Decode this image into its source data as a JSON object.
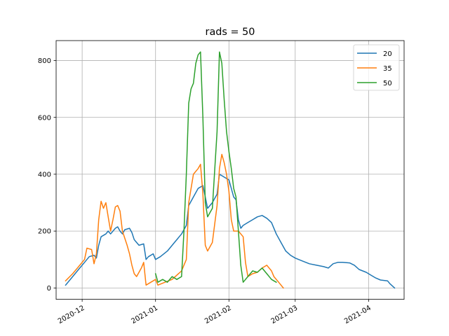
{
  "chart_data": {
    "type": "line",
    "title": "rads = 50",
    "xlabel": "",
    "ylabel": "",
    "x_axis_type": "date",
    "xlim": [
      "2020-11-20",
      "2021-04-16"
    ],
    "ylim": [
      -40,
      870
    ],
    "grid": true,
    "legend_position": "upper-right",
    "x_ticks": [
      {
        "date": "2020-12-01",
        "label": "2020-12"
      },
      {
        "date": "2021-01-01",
        "label": "2021-01"
      },
      {
        "date": "2021-02-01",
        "label": "2021-02"
      },
      {
        "date": "2021-03-01",
        "label": "2021-03"
      },
      {
        "date": "2021-04-01",
        "label": "2021-04"
      }
    ],
    "y_ticks": [
      0,
      200,
      400,
      600,
      800
    ],
    "series": [
      {
        "name": "20",
        "color": "#1f77b4",
        "points": [
          [
            "2020-11-24",
            10
          ],
          [
            "2020-11-27",
            40
          ],
          [
            "2020-11-30",
            70
          ],
          [
            "2020-12-02",
            90
          ],
          [
            "2020-12-04",
            110
          ],
          [
            "2020-12-06",
            115
          ],
          [
            "2020-12-07",
            105
          ],
          [
            "2020-12-08",
            150
          ],
          [
            "2020-12-09",
            180
          ],
          [
            "2020-12-11",
            190
          ],
          [
            "2020-12-12",
            200
          ],
          [
            "2020-12-13",
            190
          ],
          [
            "2020-12-15",
            210
          ],
          [
            "2020-12-16",
            215
          ],
          [
            "2020-12-17",
            200
          ],
          [
            "2020-12-18",
            190
          ],
          [
            "2020-12-19",
            205
          ],
          [
            "2020-12-21",
            210
          ],
          [
            "2020-12-22",
            195
          ],
          [
            "2020-12-23",
            170
          ],
          [
            "2020-12-24",
            160
          ],
          [
            "2020-12-25",
            150
          ],
          [
            "2020-12-27",
            155
          ],
          [
            "2020-12-28",
            100
          ],
          [
            "2020-12-29",
            110
          ],
          [
            "2020-12-31",
            120
          ],
          [
            "2021-01-01",
            100
          ],
          [
            "2021-01-03",
            110
          ],
          [
            "2021-01-06",
            130
          ],
          [
            "2021-01-09",
            160
          ],
          [
            "2021-01-12",
            190
          ],
          [
            "2021-01-14",
            220
          ],
          [
            "2021-01-15",
            290
          ],
          [
            "2021-01-17",
            320
          ],
          [
            "2021-01-19",
            350
          ],
          [
            "2021-01-21",
            360
          ],
          [
            "2021-01-22",
            320
          ],
          [
            "2021-01-23",
            280
          ],
          [
            "2021-01-25",
            300
          ],
          [
            "2021-01-27",
            330
          ],
          [
            "2021-01-28",
            400
          ],
          [
            "2021-01-30",
            390
          ],
          [
            "2021-02-01",
            380
          ],
          [
            "2021-02-02",
            350
          ],
          [
            "2021-02-03",
            320
          ],
          [
            "2021-02-04",
            310
          ],
          [
            "2021-02-05",
            240
          ],
          [
            "2021-02-06",
            210
          ],
          [
            "2021-02-07",
            220
          ],
          [
            "2021-02-09",
            230
          ],
          [
            "2021-02-11",
            240
          ],
          [
            "2021-02-13",
            250
          ],
          [
            "2021-02-15",
            255
          ],
          [
            "2021-02-17",
            245
          ],
          [
            "2021-02-19",
            230
          ],
          [
            "2021-02-21",
            190
          ],
          [
            "2021-02-23",
            160
          ],
          [
            "2021-02-25",
            130
          ],
          [
            "2021-02-27",
            115
          ],
          [
            "2021-03-01",
            105
          ],
          [
            "2021-03-04",
            95
          ],
          [
            "2021-03-07",
            85
          ],
          [
            "2021-03-10",
            80
          ],
          [
            "2021-03-13",
            75
          ],
          [
            "2021-03-15",
            70
          ],
          [
            "2021-03-17",
            85
          ],
          [
            "2021-03-19",
            90
          ],
          [
            "2021-03-21",
            90
          ],
          [
            "2021-03-24",
            88
          ],
          [
            "2021-03-26",
            80
          ],
          [
            "2021-03-28",
            65
          ],
          [
            "2021-03-31",
            55
          ],
          [
            "2021-04-02",
            45
          ],
          [
            "2021-04-04",
            35
          ],
          [
            "2021-04-06",
            28
          ],
          [
            "2021-04-09",
            25
          ],
          [
            "2021-04-10",
            15
          ],
          [
            "2021-04-12",
            0
          ]
        ]
      },
      {
        "name": "35",
        "color": "#ff7f0e",
        "points": [
          [
            "2020-11-24",
            25
          ],
          [
            "2020-11-27",
            50
          ],
          [
            "2020-11-30",
            80
          ],
          [
            "2020-12-02",
            100
          ],
          [
            "2020-12-03",
            140
          ],
          [
            "2020-12-05",
            135
          ],
          [
            "2020-12-06",
            85
          ],
          [
            "2020-12-07",
            120
          ],
          [
            "2020-12-08",
            240
          ],
          [
            "2020-12-09",
            305
          ],
          [
            "2020-12-10",
            280
          ],
          [
            "2020-12-11",
            300
          ],
          [
            "2020-12-12",
            250
          ],
          [
            "2020-12-13",
            200
          ],
          [
            "2020-12-14",
            240
          ],
          [
            "2020-12-15",
            285
          ],
          [
            "2020-12-16",
            290
          ],
          [
            "2020-12-17",
            270
          ],
          [
            "2020-12-18",
            200
          ],
          [
            "2020-12-20",
            150
          ],
          [
            "2020-12-21",
            120
          ],
          [
            "2020-12-22",
            80
          ],
          [
            "2020-12-23",
            50
          ],
          [
            "2020-12-24",
            40
          ],
          [
            "2020-12-26",
            70
          ],
          [
            "2020-12-27",
            90
          ],
          [
            "2020-12-28",
            10
          ],
          [
            "2020-12-30",
            20
          ],
          [
            "2021-01-01",
            30
          ],
          [
            "2021-01-02",
            10
          ],
          [
            "2021-01-05",
            20
          ],
          [
            "2021-01-08",
            30
          ],
          [
            "2021-01-12",
            60
          ],
          [
            "2021-01-14",
            100
          ],
          [
            "2021-01-15",
            300
          ],
          [
            "2021-01-17",
            400
          ],
          [
            "2021-01-19",
            420
          ],
          [
            "2021-01-20",
            435
          ],
          [
            "2021-01-21",
            330
          ],
          [
            "2021-01-22",
            150
          ],
          [
            "2021-01-23",
            130
          ],
          [
            "2021-01-25",
            160
          ],
          [
            "2021-01-27",
            290
          ],
          [
            "2021-01-28",
            420
          ],
          [
            "2021-01-29",
            470
          ],
          [
            "2021-01-30",
            440
          ],
          [
            "2021-01-31",
            400
          ],
          [
            "2021-02-01",
            340
          ],
          [
            "2021-02-02",
            240
          ],
          [
            "2021-02-03",
            200
          ],
          [
            "2021-02-05",
            200
          ],
          [
            "2021-02-07",
            180
          ],
          [
            "2021-02-08",
            90
          ],
          [
            "2021-02-09",
            40
          ],
          [
            "2021-02-11",
            50
          ],
          [
            "2021-02-13",
            55
          ],
          [
            "2021-02-15",
            70
          ],
          [
            "2021-02-17",
            80
          ],
          [
            "2021-02-19",
            60
          ],
          [
            "2021-02-20",
            40
          ],
          [
            "2021-02-22",
            20
          ],
          [
            "2021-02-24",
            0
          ]
        ]
      },
      {
        "name": "50",
        "color": "#2ca02c",
        "points": [
          [
            "2021-01-01",
            50
          ],
          [
            "2021-01-02",
            20
          ],
          [
            "2021-01-04",
            30
          ],
          [
            "2021-01-06",
            20
          ],
          [
            "2021-01-08",
            40
          ],
          [
            "2021-01-10",
            30
          ],
          [
            "2021-01-12",
            40
          ],
          [
            "2021-01-13",
            200
          ],
          [
            "2021-01-14",
            400
          ],
          [
            "2021-01-15",
            650
          ],
          [
            "2021-01-16",
            700
          ],
          [
            "2021-01-17",
            720
          ],
          [
            "2021-01-18",
            790
          ],
          [
            "2021-01-19",
            820
          ],
          [
            "2021-01-20",
            830
          ],
          [
            "2021-01-21",
            600
          ],
          [
            "2021-01-22",
            300
          ],
          [
            "2021-01-23",
            250
          ],
          [
            "2021-01-25",
            280
          ],
          [
            "2021-01-27",
            550
          ],
          [
            "2021-01-28",
            830
          ],
          [
            "2021-01-29",
            790
          ],
          [
            "2021-01-30",
            660
          ],
          [
            "2021-01-31",
            550
          ],
          [
            "2021-02-01",
            480
          ],
          [
            "2021-02-02",
            420
          ],
          [
            "2021-02-03",
            350
          ],
          [
            "2021-02-04",
            320
          ],
          [
            "2021-02-05",
            200
          ],
          [
            "2021-02-06",
            80
          ],
          [
            "2021-02-07",
            20
          ],
          [
            "2021-02-09",
            40
          ],
          [
            "2021-02-11",
            60
          ],
          [
            "2021-02-13",
            55
          ],
          [
            "2021-02-15",
            70
          ],
          [
            "2021-02-17",
            50
          ],
          [
            "2021-02-19",
            30
          ],
          [
            "2021-02-21",
            20
          ]
        ]
      }
    ]
  }
}
